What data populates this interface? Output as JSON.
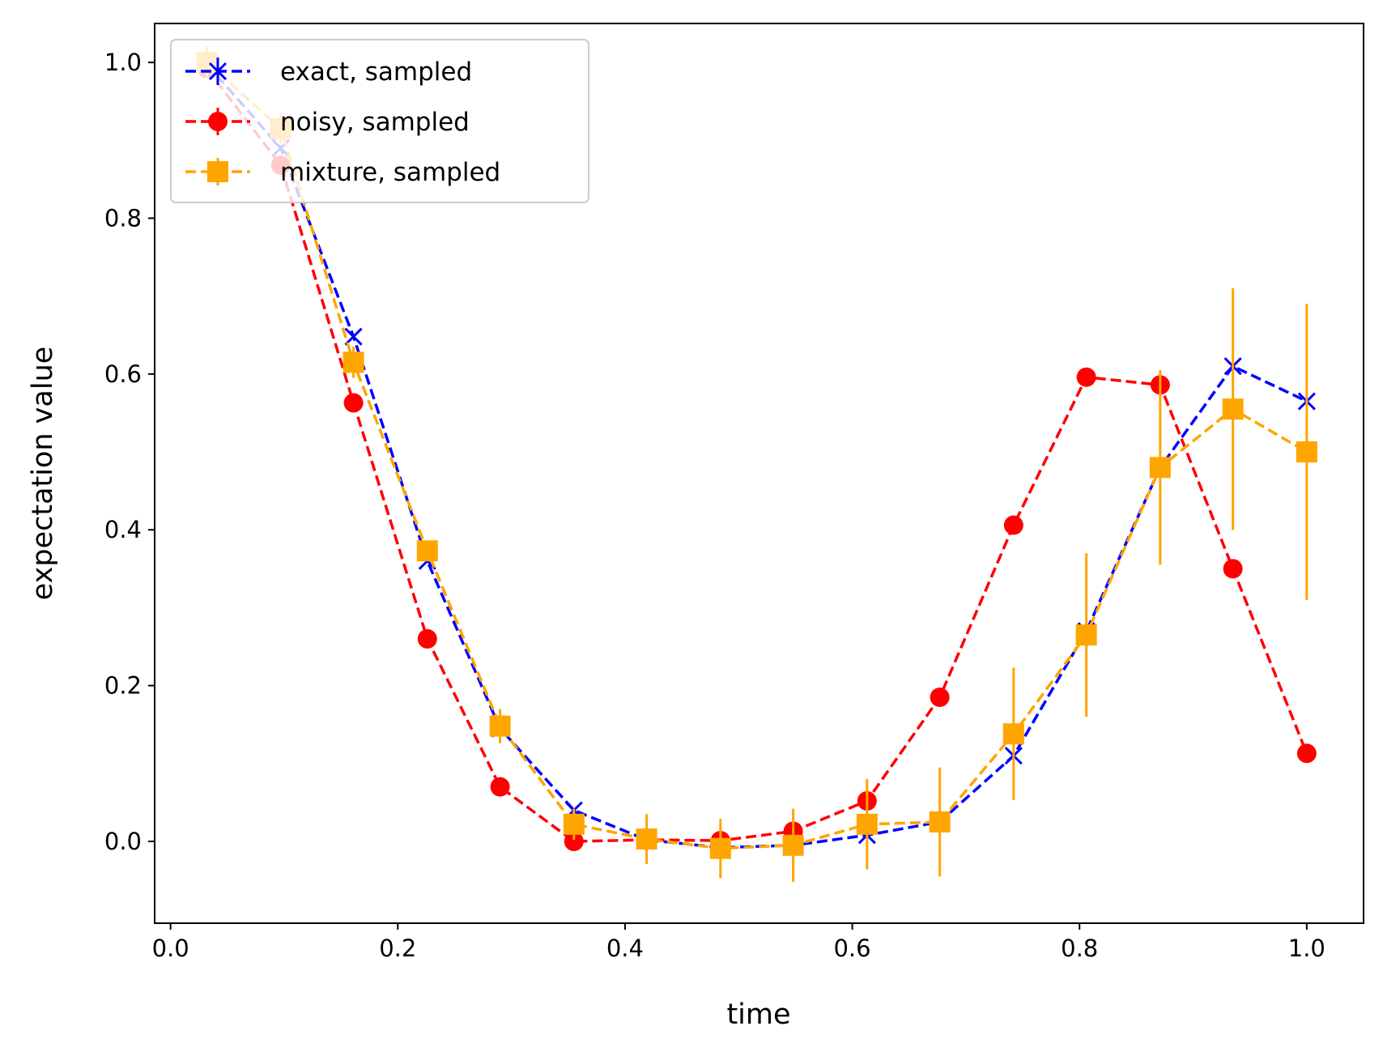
{
  "chart_data": {
    "type": "line",
    "title": "",
    "xlabel": "time",
    "ylabel": "expectation value",
    "xlim": [
      -0.014,
      1.05
    ],
    "ylim": [
      -0.105,
      1.05
    ],
    "xticks": [
      0.0,
      0.2,
      0.4,
      0.6,
      0.8,
      1.0
    ],
    "xtick_labels": [
      "0.0",
      "0.2",
      "0.4",
      "0.6",
      "0.8",
      "1.0"
    ],
    "yticks": [
      0.0,
      0.2,
      0.4,
      0.6,
      0.8,
      1.0
    ],
    "ytick_labels": [
      "0.0",
      "0.2",
      "0.4",
      "0.6",
      "0.8",
      "1.0"
    ],
    "grid": false,
    "legend_position": "upper left",
    "x": [
      0.032,
      0.097,
      0.161,
      0.226,
      0.29,
      0.355,
      0.419,
      0.484,
      0.548,
      0.613,
      0.677,
      0.742,
      0.806,
      0.871,
      0.935,
      1.0
    ],
    "series": [
      {
        "name": "exact, sampled",
        "color": "#0000ff",
        "marker": "x",
        "values": [
          0.998,
          0.89,
          0.648,
          0.36,
          0.145,
          0.04,
          0.002,
          -0.008,
          -0.005,
          0.008,
          0.025,
          0.11,
          0.27,
          0.48,
          0.61,
          0.565
        ],
        "errors": [
          0,
          0,
          0,
          0,
          0,
          0,
          0,
          0,
          0,
          0,
          0,
          0,
          0,
          0,
          0,
          0
        ]
      },
      {
        "name": "noisy, sampled",
        "color": "#ff0000",
        "marker": "o",
        "values": [
          0.992,
          0.868,
          0.563,
          0.26,
          0.07,
          0.0,
          0.002,
          0.001,
          0.013,
          0.052,
          0.185,
          0.406,
          0.596,
          0.586,
          0.35,
          0.113
        ],
        "errors": [
          0,
          0,
          0,
          0,
          0,
          0,
          0,
          0,
          0,
          0,
          0,
          0,
          0,
          0,
          0,
          0
        ]
      },
      {
        "name": "mixture, sampled",
        "color": "#ffa500",
        "marker": "s",
        "values": [
          1.0,
          0.915,
          0.615,
          0.373,
          0.148,
          0.022,
          0.003,
          -0.009,
          -0.005,
          0.022,
          0.025,
          0.138,
          0.265,
          0.48,
          0.555,
          0.5
        ],
        "errors": [
          0.02,
          0.02,
          0.02,
          0.012,
          0.022,
          0.02,
          0.032,
          0.038,
          0.047,
          0.058,
          0.07,
          0.085,
          0.105,
          0.125,
          0.155,
          0.19
        ]
      }
    ]
  }
}
